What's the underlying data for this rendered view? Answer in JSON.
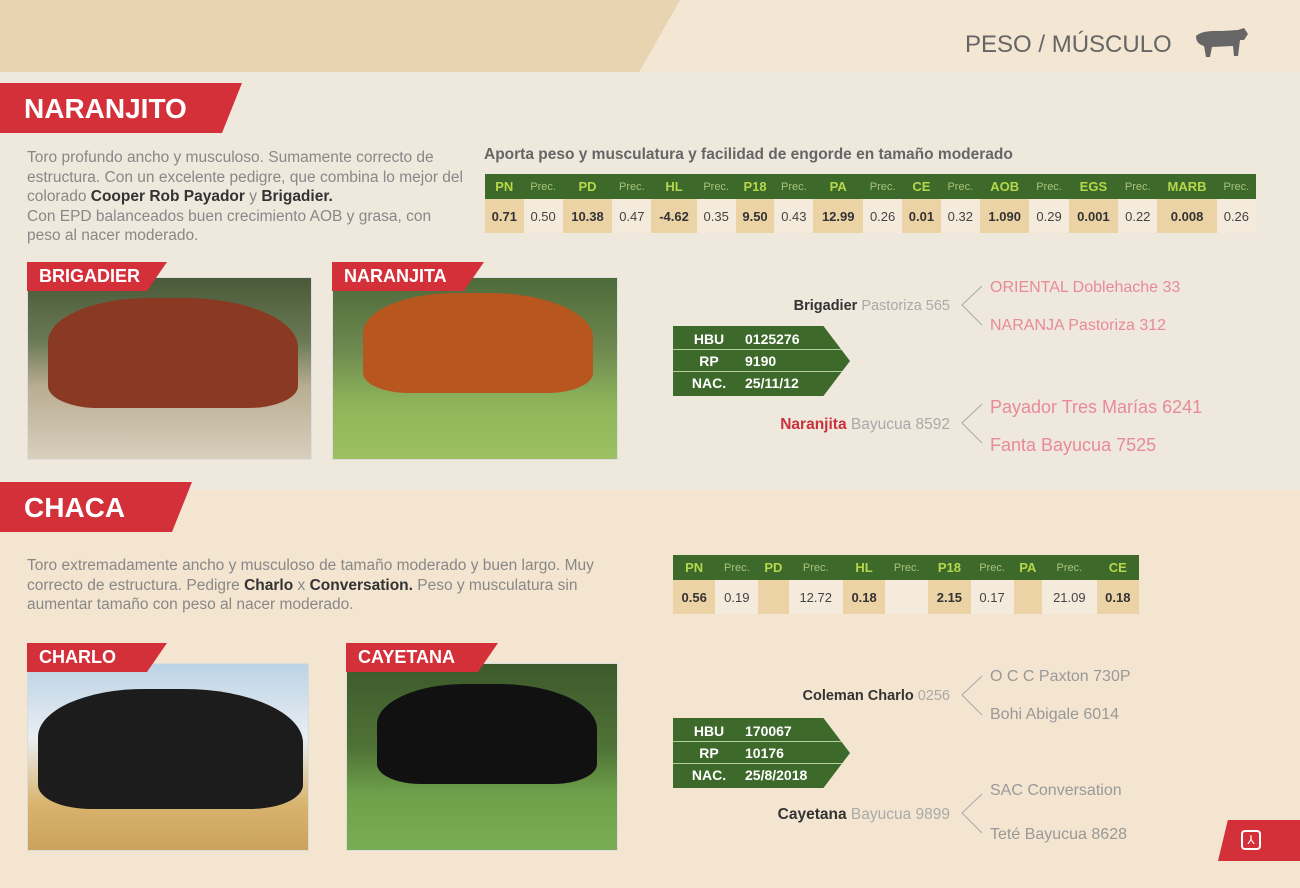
{
  "header": {
    "section": "PESO / MÚSCULO",
    "icon": "bull-icon"
  },
  "colors": {
    "red": "#d3303a",
    "green": "#3d6a2b",
    "tan": "#ecd3a6"
  },
  "naranjito": {
    "name": "NARANJITO",
    "desc_parts": [
      "Toro profundo ancho y musculoso. Sumamente correcto de estructura. Con un excelente pedigre, que combina lo mejor del colorado ",
      "Cooper Rob  Payador",
      " y ",
      "Brigadier.",
      ". Con EPD balanceados buen crecimiento AOB y grasa, con peso al nacer moderado."
    ],
    "subtitle": "Aporta peso y musculatura y facilidad de engorde en tamaño moderado",
    "epd_headers": [
      "PN",
      "Prec.",
      "PD",
      "Prec.",
      "HL",
      "Prec.",
      "P18",
      "Prec.",
      "PA",
      "Prec.",
      "CE",
      "Prec.",
      "AOB",
      "Prec.",
      "EGS",
      "Prec.",
      "MARB",
      "Prec."
    ],
    "epd_values": [
      "0.71",
      "0.50",
      "10.38",
      "0.47",
      "-4.62",
      "0.35",
      "9.50",
      "0.43",
      "12.99",
      "0.26",
      "0.01",
      "0.32",
      "1.090",
      "0.29",
      "0.001",
      "0.22",
      "0.008",
      "0.26"
    ],
    "sire_label": "BRIGADIER",
    "dam_label": "NARANJITA",
    "id": {
      "hbu_l": "HBU",
      "hbu": "0125276",
      "rp_l": "RP",
      "rp": "9190",
      "nac_l": "NAC.",
      "nac": "25/11/12"
    },
    "sire": {
      "bold": "Brigadier",
      "rest": " Pastoriza 565",
      "parents": [
        "ORIENTAL Doblehache 33",
        "NARANJA Pastoriza 312"
      ]
    },
    "dam": {
      "bold": "Naranjita",
      "rest": " Bayucua 8592",
      "parents": [
        "Payador Tres Marías 6241",
        "Fanta Bayucua 7525"
      ]
    }
  },
  "chaca": {
    "name": "CHACA",
    "desc_parts": [
      "Toro extremadamente ancho y musculoso de tamaño moderado y buen largo. Muy correcto de estructura. Pedigre ",
      "Charlo",
      " x ",
      "Conversation.",
      ". Peso y musculatura sin aumentar tamaño con peso al nacer moderado."
    ],
    "epd_headers": [
      "PN",
      "Prec.",
      "PD",
      "Prec.",
      "HL",
      "Prec.",
      "P18",
      "Prec.",
      "PA",
      "Prec.",
      "CE"
    ],
    "epd_values": [
      "0.56",
      "0.19",
      "",
      "12.72",
      "0.18",
      "",
      "2.15",
      "0.17",
      "",
      "21.09",
      "0.18"
    ],
    "sire_label": "CHARLO",
    "dam_label": "CAYETANA",
    "id": {
      "hbu_l": "HBU",
      "hbu": "170067",
      "rp_l": "RP",
      "rp": "10176",
      "nac_l": "NAC.",
      "nac": "25/8/2018"
    },
    "sire": {
      "bold": "Coleman Charlo",
      "rest": " 0256",
      "parents": [
        "O C C Paxton 730P",
        "Bohi Abigale 6014"
      ]
    },
    "dam": {
      "bold": "Cayetana",
      "rest": " Bayucua 9899",
      "parents": [
        "SAC Conversation",
        "Teté Bayucua 8628"
      ]
    }
  }
}
